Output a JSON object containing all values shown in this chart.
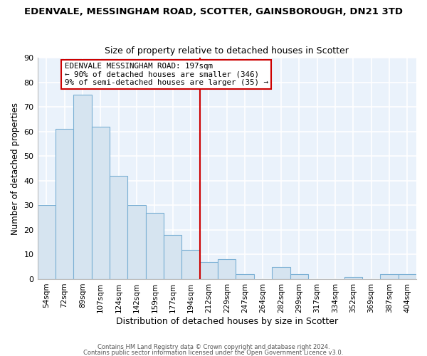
{
  "title": "EDENVALE, MESSINGHAM ROAD, SCOTTER, GAINSBOROUGH, DN21 3TD",
  "subtitle": "Size of property relative to detached houses in Scotter",
  "xlabel": "Distribution of detached houses by size in Scotter",
  "ylabel": "Number of detached properties",
  "bar_labels": [
    "54sqm",
    "72sqm",
    "89sqm",
    "107sqm",
    "124sqm",
    "142sqm",
    "159sqm",
    "177sqm",
    "194sqm",
    "212sqm",
    "229sqm",
    "247sqm",
    "264sqm",
    "282sqm",
    "299sqm",
    "317sqm",
    "334sqm",
    "352sqm",
    "369sqm",
    "387sqm",
    "404sqm"
  ],
  "bar_values": [
    30,
    61,
    75,
    62,
    42,
    30,
    27,
    18,
    12,
    7,
    8,
    2,
    0,
    5,
    2,
    0,
    0,
    1,
    0,
    2,
    2
  ],
  "bar_color": "#d6e4f0",
  "bar_edge_color": "#7aafd4",
  "vline_x": 8.5,
  "vline_color": "#cc0000",
  "annotation_title": "EDENVALE MESSINGHAM ROAD: 197sqm",
  "annotation_line1": "← 90% of detached houses are smaller (346)",
  "annotation_line2": "9% of semi-detached houses are larger (35) →",
  "annotation_box_color": "#ffffff",
  "annotation_box_edge": "#cc0000",
  "ylim": [
    0,
    90
  ],
  "yticks": [
    0,
    10,
    20,
    30,
    40,
    50,
    60,
    70,
    80,
    90
  ],
  "background_color": "#ffffff",
  "plot_bg_color": "#eaf2fb",
  "grid_color": "#ffffff",
  "footer1": "Contains HM Land Registry data © Crown copyright and database right 2024.",
  "footer2": "Contains public sector information licensed under the Open Government Licence v3.0."
}
